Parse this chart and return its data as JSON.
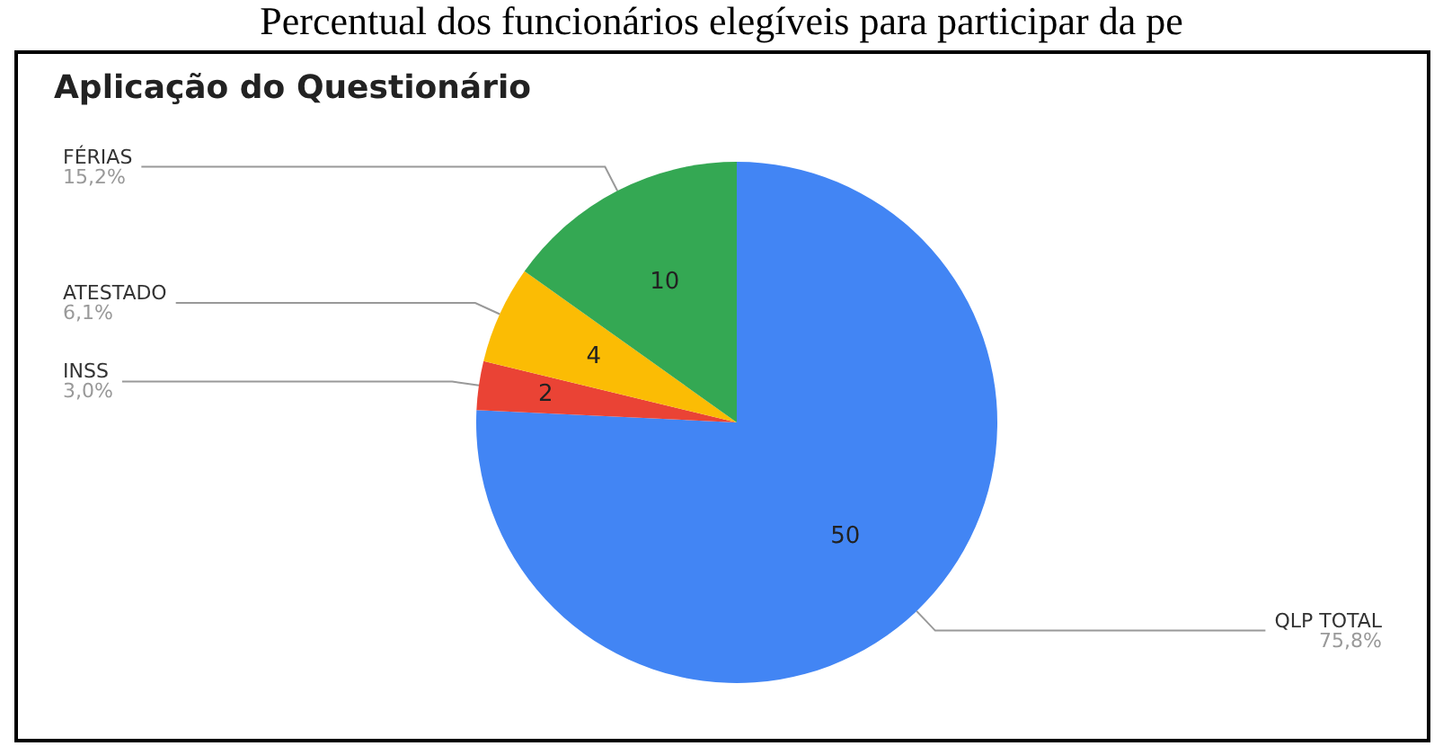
{
  "chart_data": {
    "type": "pie",
    "title": "Aplicação do Questionário",
    "annotations": [
      "Percentual dos funcionários elegíveis para participar da pe",
      {
        "text": "75,8%",
        "x": "QLP TOTAL"
      },
      {
        "text": "3,0%",
        "x": "INSS"
      },
      {
        "text": "6,1%",
        "x": "ATESTADO"
      },
      {
        "text": "15,2%",
        "x": "FÉRIAS"
      }
    ],
    "categories": [
      "QLP TOTAL",
      "INSS",
      "ATESTADO",
      "FÉRIAS"
    ],
    "values": [
      50,
      2,
      4,
      10
    ],
    "colors": [
      "#4285f4",
      "#ea4335",
      "#fbbc04",
      "#34a853"
    ],
    "data_labels": true,
    "legend": false
  }
}
